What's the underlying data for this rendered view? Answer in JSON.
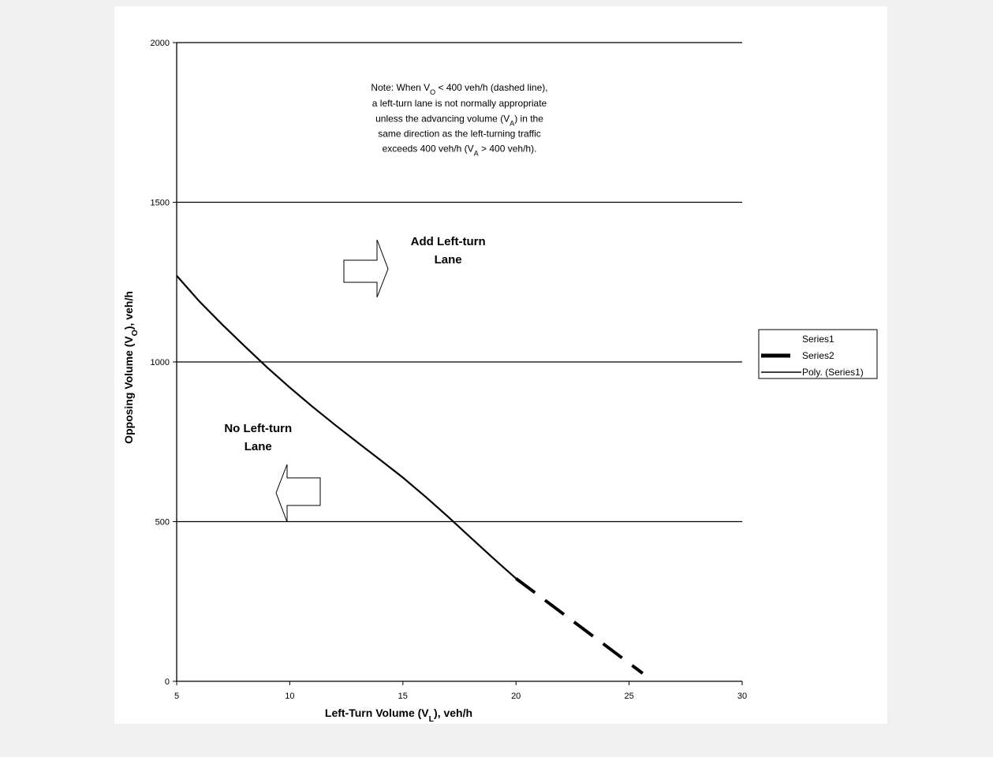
{
  "chart_data": {
    "type": "line",
    "xlabel": {
      "prefix": "Left-Turn Volume (V",
      "sub": "L",
      "suffix": "), veh/h"
    },
    "ylabel": {
      "prefix": "Opposing Volume (V",
      "sub": "O",
      "suffix": "), veh/h"
    },
    "xlim": [
      5,
      30
    ],
    "ylim": [
      0,
      2000
    ],
    "x_ticks": [
      5,
      10,
      15,
      20,
      25,
      30
    ],
    "y_ticks": [
      0,
      500,
      1000,
      1500,
      2000
    ],
    "y_gridlines": true,
    "legend_position": "right",
    "legend": [
      {
        "name": "Series1",
        "style": "none"
      },
      {
        "name": "Series2",
        "style": "thick"
      },
      {
        "name": "Poly. (Series1)",
        "style": "thin"
      }
    ],
    "series": [
      {
        "name": "Poly. (Series1)",
        "style": "solid",
        "points": [
          [
            5,
            1270
          ],
          [
            6,
            1190
          ],
          [
            7,
            1118
          ],
          [
            8,
            1050
          ],
          [
            9,
            983
          ],
          [
            10,
            920
          ],
          [
            11,
            860
          ],
          [
            12,
            803
          ],
          [
            13,
            748
          ],
          [
            14,
            693
          ],
          [
            15,
            638
          ],
          [
            16,
            578
          ],
          [
            17,
            515
          ],
          [
            18,
            450
          ],
          [
            19,
            385
          ],
          [
            20,
            322
          ]
        ]
      },
      {
        "name": "Series2",
        "style": "dashed",
        "points": [
          [
            20,
            322
          ],
          [
            25.6,
            25
          ]
        ]
      }
    ],
    "annotations": {
      "note_lines": [
        {
          "parts": [
            {
              "t": "Note:  When V"
            },
            {
              "t": "O",
              "sub": true
            },
            {
              "t": " < 400 veh/h (dashed line),"
            }
          ],
          "x": 17.5,
          "y": 1850
        },
        {
          "parts": [
            {
              "t": "a left-turn lane is not normally appropriate"
            }
          ],
          "x": 17.5,
          "y": 1800
        },
        {
          "parts": [
            {
              "t": "unless the advancing volume (V"
            },
            {
              "t": "A",
              "sub": true
            },
            {
              "t": ") in the"
            }
          ],
          "x": 17.5,
          "y": 1752
        },
        {
          "parts": [
            {
              "t": "same direction as the left-turning traffic"
            }
          ],
          "x": 17.5,
          "y": 1705
        },
        {
          "parts": [
            {
              "t": "exceeds 400 veh/h (V"
            },
            {
              "t": "A",
              "sub": true
            },
            {
              "t": " > 400 veh/h)."
            }
          ],
          "x": 17.5,
          "y": 1658
        }
      ],
      "add_lane": {
        "line1": "Add Left-turn",
        "line2": "Lane",
        "x": 17,
        "y": 1365
      },
      "no_lane": {
        "line1": "No Left-turn",
        "line2": "Lane",
        "x": 8.6,
        "y": 780
      }
    }
  }
}
